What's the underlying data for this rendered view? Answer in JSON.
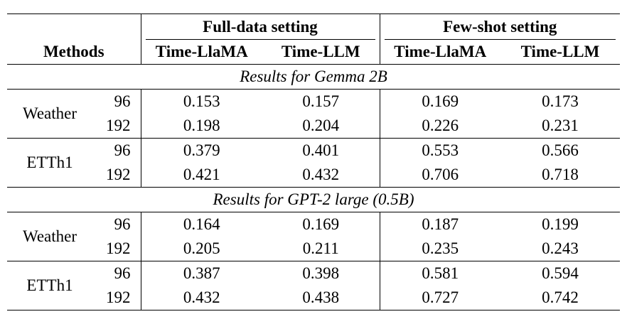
{
  "header": {
    "methods": "Methods",
    "groups": [
      "Full-data setting",
      "Few-shot setting"
    ],
    "subcolumns": [
      "Time-LlaMA",
      "Time-LLM",
      "Time-LlaMA",
      "Time-LLM"
    ]
  },
  "sections": [
    {
      "title": "Results for Gemma 2B",
      "datasets": [
        {
          "name": "Weather",
          "rows": [
            {
              "horizon": "96",
              "values": [
                "0.153",
                "0.157",
                "0.169",
                "0.173"
              ]
            },
            {
              "horizon": "192",
              "values": [
                "0.198",
                "0.204",
                "0.226",
                "0.231"
              ]
            }
          ]
        },
        {
          "name": "ETTh1",
          "rows": [
            {
              "horizon": "96",
              "values": [
                "0.379",
                "0.401",
                "0.553",
                "0.566"
              ]
            },
            {
              "horizon": "192",
              "values": [
                "0.421",
                "0.432",
                "0.706",
                "0.718"
              ]
            }
          ]
        }
      ]
    },
    {
      "title": "Results for GPT-2 large (0.5B)",
      "datasets": [
        {
          "name": "Weather",
          "rows": [
            {
              "horizon": "96",
              "values": [
                "0.164",
                "0.169",
                "0.187",
                "0.199"
              ]
            },
            {
              "horizon": "192",
              "values": [
                "0.205",
                "0.211",
                "0.235",
                "0.243"
              ]
            }
          ]
        },
        {
          "name": "ETTh1",
          "rows": [
            {
              "horizon": "96",
              "values": [
                "0.387",
                "0.398",
                "0.581",
                "0.594"
              ]
            },
            {
              "horizon": "192",
              "values": [
                "0.432",
                "0.438",
                "0.727",
                "0.742"
              ]
            }
          ]
        }
      ]
    }
  ]
}
